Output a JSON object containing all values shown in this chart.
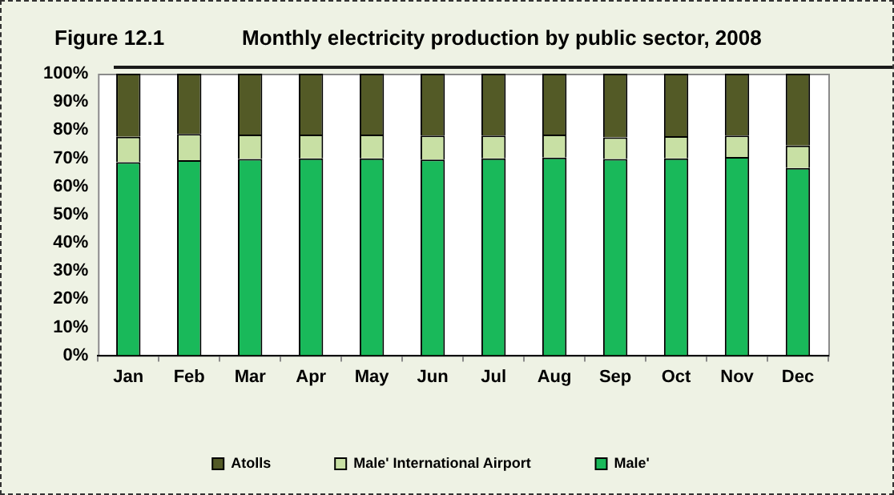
{
  "chart_data": {
    "type": "bar",
    "title": "Monthly electricity production by public sector, 2008",
    "annotations": [
      "Figure 12.1"
    ],
    "categories": [
      "Jan",
      "Feb",
      "Mar",
      "Apr",
      "May",
      "Jun",
      "Jul",
      "Aug",
      "Sep",
      "Oct",
      "Nov",
      "Dec"
    ],
    "stacked": true,
    "series": [
      {
        "name": "Male'",
        "color": "#19b95a",
        "values": [
          68.6,
          69.3,
          69.7,
          69.9,
          69.9,
          69.5,
          69.9,
          70.2,
          69.7,
          69.9,
          70.4,
          66.5
        ]
      },
      {
        "name": "Male' International Airport",
        "color": "#c8e0a4",
        "values": [
          9.0,
          9.3,
          8.7,
          8.5,
          8.5,
          8.5,
          8.1,
          8.2,
          7.7,
          7.9,
          7.6,
          8.0
        ]
      },
      {
        "name": "Atolls",
        "color": "#535a26",
        "values": [
          22.4,
          21.4,
          21.6,
          21.6,
          21.6,
          22.0,
          22.0,
          21.6,
          22.6,
          22.2,
          22.0,
          25.5
        ]
      }
    ],
    "ylim": [
      0,
      100
    ],
    "yticks": [
      {
        "value": 0,
        "label": "0%"
      },
      {
        "value": 10,
        "label": "10%"
      },
      {
        "value": 20,
        "label": "20%"
      },
      {
        "value": 30,
        "label": "30%"
      },
      {
        "value": 40,
        "label": "40%"
      },
      {
        "value": 50,
        "label": "50%"
      },
      {
        "value": 60,
        "label": "60%"
      },
      {
        "value": 70,
        "label": "70%"
      },
      {
        "value": 80,
        "label": "80%"
      },
      {
        "value": 90,
        "label": "90%"
      },
      {
        "value": 100,
        "label": "100%"
      }
    ],
    "grid": false,
    "legend": "bottom"
  }
}
